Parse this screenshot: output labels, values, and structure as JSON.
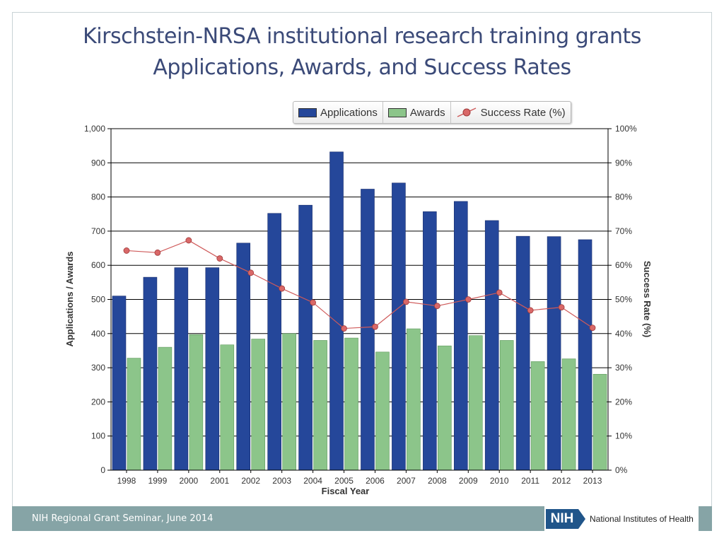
{
  "slide": {
    "title_line1": "Kirschstein-NRSA institutional research training grants",
    "title_line2": "Applications, Awards, and Success Rates",
    "footer_text": "NIH Regional Grant Seminar, June 2014",
    "logo_abbrev": "NIH",
    "logo_name": "National Institutes of Health"
  },
  "colors": {
    "applications": "#25479a",
    "awards": "#8cc58a",
    "success_rate": "#cf5a5a",
    "title": "#3b4a78",
    "footer": "#86a4a6"
  },
  "chart_data": {
    "type": "bar",
    "categories": [
      "1998",
      "1999",
      "2000",
      "2001",
      "2002",
      "2003",
      "2004",
      "2005",
      "2006",
      "2007",
      "2008",
      "2009",
      "2010",
      "2011",
      "2012",
      "2013"
    ],
    "series": [
      {
        "name": "Applications",
        "axis": "left",
        "type": "bar",
        "values": [
          510,
          565,
          593,
          593,
          665,
          752,
          776,
          932,
          823,
          841,
          757,
          787,
          731,
          685,
          684,
          675
        ]
      },
      {
        "name": "Awards",
        "axis": "left",
        "type": "bar",
        "values": [
          328,
          360,
          397,
          367,
          384,
          400,
          380,
          387,
          346,
          414,
          364,
          394,
          380,
          318,
          326,
          281
        ]
      },
      {
        "name": "Success Rate  (%)",
        "axis": "right",
        "type": "line",
        "values": [
          64.3,
          63.7,
          67.3,
          62.0,
          57.8,
          53.2,
          49.1,
          41.5,
          42.0,
          49.3,
          48.1,
          50.0,
          52.0,
          46.8,
          47.7,
          41.7
        ]
      }
    ],
    "xlabel": "Fiscal Year",
    "ylabel": "Applications / Awards",
    "y2label": "Success Rate  (%)",
    "ylim": [
      0,
      1000
    ],
    "y2lim": [
      0,
      100
    ],
    "yticks": [
      "0",
      "100",
      "200",
      "300",
      "400",
      "500",
      "600",
      "700",
      "800",
      "900",
      "1,000"
    ],
    "y2ticks": [
      "0%",
      "10%",
      "20%",
      "30%",
      "40%",
      "50%",
      "60%",
      "70%",
      "80%",
      "90%",
      "100%"
    ],
    "grid": true,
    "legend_position": "top-right"
  }
}
